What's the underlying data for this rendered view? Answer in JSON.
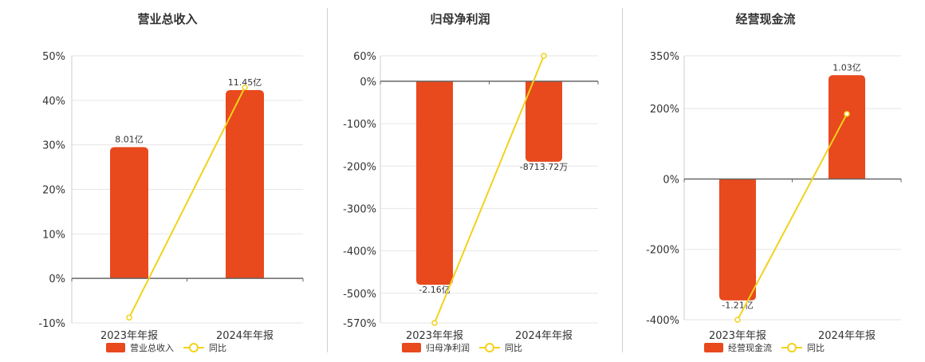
{
  "colors": {
    "bar": "#E8491D",
    "line": "#F2D21B",
    "grid": "#e6e6e6",
    "axis": "#666666"
  },
  "chart_data": [
    {
      "type": "bar",
      "title": "营业总收入",
      "categories": [
        "2023年年报",
        "2024年年报"
      ],
      "yticks": [
        "50%",
        "40%",
        "30%",
        "20%",
        "10%",
        "0%",
        "-10%"
      ],
      "ylim": [
        -10,
        50
      ],
      "grid": true,
      "legend_position": "bottom-center",
      "series": [
        {
          "name": "营业总收入",
          "type": "bar",
          "values": [
            29.5,
            42.3
          ],
          "labels": [
            "8.01亿",
            "11.45亿"
          ]
        },
        {
          "name": "同比",
          "type": "line",
          "values": [
            -8.8,
            42.9
          ]
        }
      ]
    },
    {
      "type": "bar",
      "title": "归母净利润",
      "categories": [
        "2023年年报",
        "2024年年报"
      ],
      "yticks": [
        "60%",
        "0%",
        "-100%",
        "-200%",
        "-300%",
        "-400%",
        "-500%",
        "-570%"
      ],
      "ylim": [
        -570,
        60
      ],
      "grid": true,
      "legend_position": "bottom-center",
      "series": [
        {
          "name": "归母净利润",
          "type": "bar",
          "values": [
            -480,
            -190
          ],
          "labels": [
            "-2.16亿",
            "-8713.72万"
          ]
        },
        {
          "name": "同比",
          "type": "line",
          "values": [
            -570,
            60
          ]
        }
      ]
    },
    {
      "type": "bar",
      "title": "经营现金流",
      "categories": [
        "2023年年报",
        "2024年年报"
      ],
      "yticks": [
        "350%",
        "200%",
        "0%",
        "-200%",
        "-400%"
      ],
      "ylim": [
        -400,
        350
      ],
      "grid": true,
      "legend_position": "bottom-center",
      "series": [
        {
          "name": "经营现金流",
          "type": "bar",
          "values": [
            -345,
            295
          ],
          "labels": [
            "-1.21亿",
            "1.03亿"
          ]
        },
        {
          "name": "同比",
          "type": "line",
          "values": [
            -400,
            185
          ]
        }
      ]
    }
  ]
}
